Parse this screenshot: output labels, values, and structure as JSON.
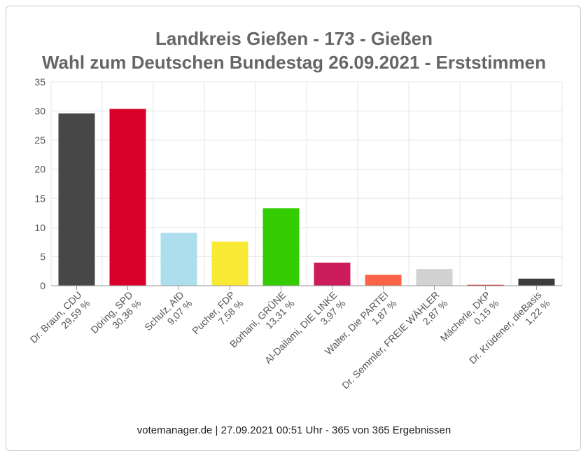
{
  "chart_data": {
    "type": "bar",
    "title": "Landkreis Gießen - 173 - Gießen",
    "subtitle": "Wahl zum Deutschen Bundestag 26.09.2021  - Erststimmen",
    "categories": [
      "Dr. Braun, CDU",
      "Döring, SPD",
      "Schulz, AfD",
      "Pucher, FDP",
      "Borhani, GRÜNE",
      "Al-Dailami, DIE LINKE",
      "Walter, Die PARTEI",
      "Dr. Semmler, FREIE WÄHLER",
      "Mächerle, DKP",
      "Dr. Krüdener, dieBasis"
    ],
    "values": [
      29.59,
      30.36,
      9.07,
      7.58,
      13.31,
      3.97,
      1.87,
      2.87,
      0.15,
      1.22
    ],
    "value_labels": [
      "29,59 %",
      "30,36 %",
      "9,07 %",
      "7,58 %",
      "13,31 %",
      "3,97 %",
      "1,87 %",
      "2,87 %",
      "0,15 %",
      "1,22 %"
    ],
    "colors": [
      "#474747",
      "#d9002a",
      "#acdeee",
      "#f8ea35",
      "#33cc00",
      "#cc1c5c",
      "#ff6347",
      "#d2d2d2",
      "#cc1111",
      "#3c3c3c"
    ],
    "ylim": [
      0,
      35
    ],
    "yticks": [
      0,
      5,
      10,
      15,
      20,
      25,
      30,
      35
    ],
    "grid": true,
    "xlabel": "",
    "ylabel": ""
  },
  "footer": "votemanager.de | 27.09.2021 00:51 Uhr - 365 von 365 Ergebnissen"
}
